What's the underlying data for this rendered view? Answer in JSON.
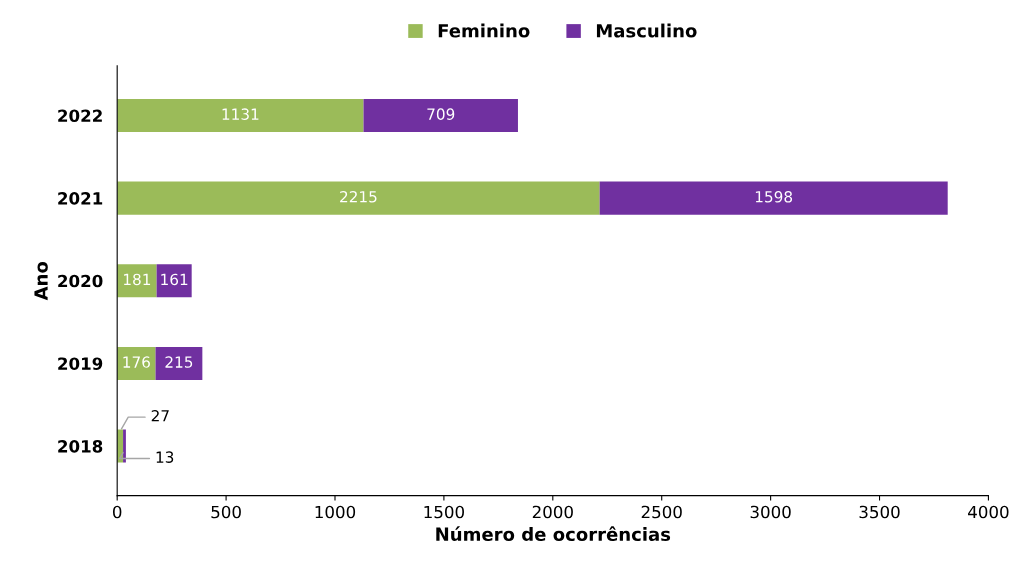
{
  "chart_data": {
    "type": "bar",
    "orientation": "horizontal",
    "stacked": true,
    "xlabel": "Número de ocorrências",
    "ylabel": "Ano",
    "categories": [
      "2022",
      "2021",
      "2020",
      "2019",
      "2018"
    ],
    "series": [
      {
        "name": "Feminino",
        "color": "#9bbb59",
        "values": [
          1131,
          2215,
          181,
          176,
          27
        ]
      },
      {
        "name": "Masculino",
        "color": "#7030a0",
        "values": [
          709,
          1598,
          161,
          215,
          13
        ]
      }
    ],
    "xlim": [
      0,
      4000
    ],
    "xticks": [
      0,
      500,
      1000,
      1500,
      2000,
      2500,
      3000,
      3500,
      4000
    ],
    "data_labels": true,
    "legend": "top",
    "grid": false
  }
}
